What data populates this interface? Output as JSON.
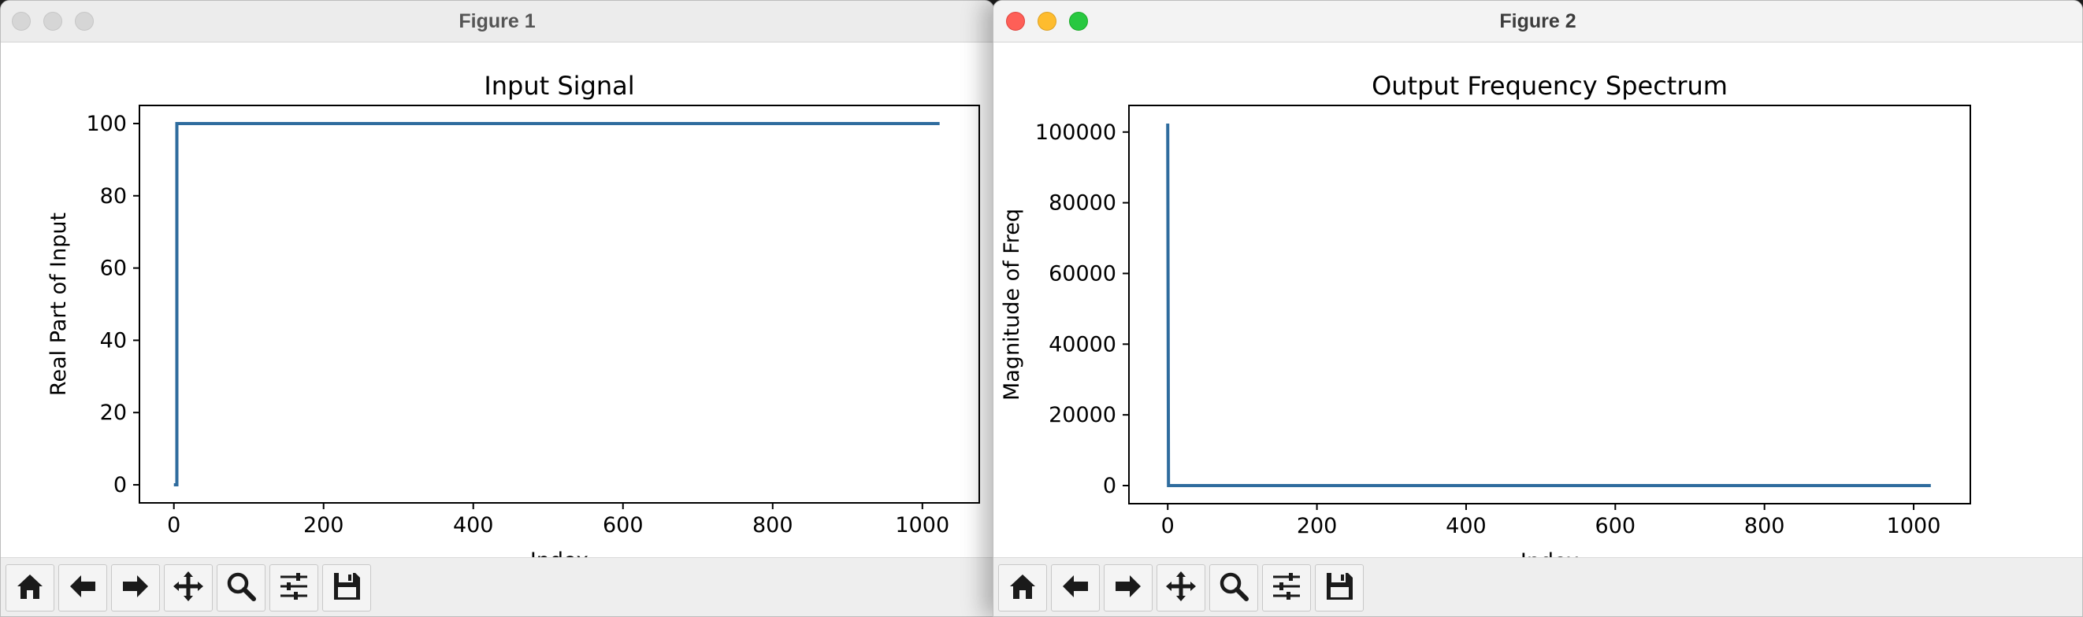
{
  "windows": [
    {
      "title": "Figure 1",
      "active": false,
      "toolbar": [
        "home-icon",
        "back-arrow-icon",
        "forward-arrow-icon",
        "pan-icon",
        "zoom-icon",
        "subplots-icon",
        "save-icon"
      ],
      "chart_data": {
        "type": "line",
        "title": "Input Signal",
        "xlabel": "Index",
        "ylabel": "Real Part of Input",
        "xlim": [
          -46,
          1076
        ],
        "ylim": [
          -5,
          105
        ],
        "xticks": [
          0,
          200,
          400,
          600,
          800,
          1000
        ],
        "yticks": [
          0,
          20,
          40,
          60,
          80,
          100
        ],
        "series": [
          {
            "x": [
              0,
              4,
              4,
              1023
            ],
            "y": [
              0,
              0,
              100,
              100
            ],
            "color": "#2f6c9e"
          }
        ]
      }
    },
    {
      "title": "Figure 2",
      "active": true,
      "toolbar": [
        "home-icon",
        "back-arrow-icon",
        "forward-arrow-icon",
        "pan-icon",
        "zoom-icon",
        "subplots-icon",
        "save-icon"
      ],
      "chart_data": {
        "type": "line",
        "title": "Output Frequency Spectrum",
        "xlabel": "Index",
        "ylabel": "Magnitude of Freq",
        "xlim": [
          -52,
          1076
        ],
        "ylim": [
          -5120,
          107520
        ],
        "xticks": [
          0,
          200,
          400,
          600,
          800,
          1000
        ],
        "yticks": [
          0,
          20000,
          40000,
          60000,
          80000,
          100000
        ],
        "series": [
          {
            "x": [
              0,
              1,
              1023
            ],
            "y": [
              102400,
              0,
              0
            ],
            "color": "#2f6c9e"
          }
        ]
      }
    }
  ]
}
